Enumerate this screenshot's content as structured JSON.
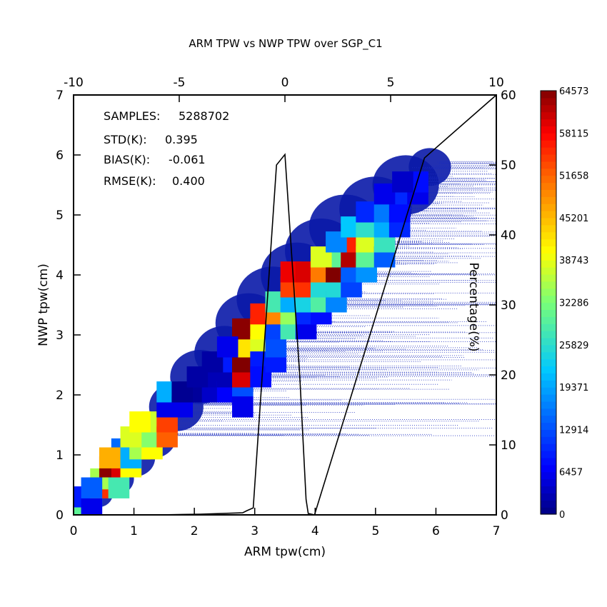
{
  "chart_data": {
    "type": "heatmap",
    "title": "ARM TPW vs NWP TPW over SGP_C1",
    "xlabel": "ARM tpw(cm)",
    "ylabel": "NWP tpw(cm)",
    "xlim": [
      0,
      7
    ],
    "ylim": [
      0,
      7
    ],
    "x_ticks": [
      "0",
      "1",
      "2",
      "3",
      "4",
      "5",
      "6",
      "7"
    ],
    "y_ticks": [
      "0",
      "1",
      "2",
      "3",
      "4",
      "5",
      "6",
      "7"
    ],
    "top_axis": {
      "lim": [
        -10,
        10
      ],
      "ticks": [
        "-10",
        "-5",
        "0",
        "5",
        "10"
      ]
    },
    "right_axis": {
      "label": "Percentage(%)",
      "lim": [
        0,
        60
      ],
      "ticks": [
        "0",
        "10",
        "20",
        "30",
        "40",
        "50",
        "60"
      ]
    },
    "stats": [
      {
        "label": "SAMPLES:",
        "value": "5288702"
      },
      {
        "label": "STD(K):",
        "value": "0.395"
      },
      {
        "label": "BIAS(K):",
        "value": "-0.061"
      },
      {
        "label": "RMSE(K):",
        "value": "0.400"
      }
    ],
    "colorbar": {
      "min": 0,
      "max": 64573,
      "ticks": [
        "0",
        "6457",
        "12914",
        "19371",
        "25829",
        "32286",
        "38743",
        "45201",
        "51658",
        "58115",
        "64573"
      ]
    },
    "bin_size": 0.35,
    "cells": [
      [
        0.1,
        0.1,
        30000
      ],
      [
        0.3,
        0.3,
        22000
      ],
      [
        0.1,
        0.3,
        9000
      ],
      [
        0.3,
        0.1,
        6000
      ],
      [
        0.45,
        0.45,
        55000
      ],
      [
        0.6,
        0.6,
        60000
      ],
      [
        0.45,
        0.6,
        35000
      ],
      [
        0.6,
        0.8,
        64000
      ],
      [
        0.3,
        0.45,
        14000
      ],
      [
        0.75,
        0.45,
        28000
      ],
      [
        0.8,
        0.8,
        60000
      ],
      [
        0.95,
        0.8,
        40000
      ],
      [
        0.8,
        1.1,
        15000
      ],
      [
        0.95,
        0.95,
        20000
      ],
      [
        0.6,
        0.95,
        46000
      ],
      [
        1.1,
        1.1,
        35000
      ],
      [
        1.1,
        1.3,
        41000
      ],
      [
        1.3,
        1.1,
        40000
      ],
      [
        1.3,
        1.3,
        33000
      ],
      [
        0.95,
        1.3,
        38000
      ],
      [
        1.3,
        1.55,
        37000
      ],
      [
        1.1,
        1.55,
        40000
      ],
      [
        1.55,
        1.3,
        52000
      ],
      [
        1.55,
        1.55,
        54000
      ],
      [
        1.55,
        1.8,
        6000
      ],
      [
        1.55,
        2.05,
        20000
      ],
      [
        1.8,
        1.8,
        6000
      ],
      [
        2.05,
        2.05,
        1500
      ],
      [
        2.3,
        2.05,
        4000
      ],
      [
        1.8,
        2.05,
        1000
      ],
      [
        2.3,
        2.3,
        3000
      ],
      [
        2.05,
        2.3,
        2000
      ],
      [
        2.55,
        2.05,
        7000
      ],
      [
        2.55,
        2.3,
        3000
      ],
      [
        2.8,
        2.05,
        13000
      ],
      [
        2.55,
        2.55,
        9000
      ],
      [
        2.8,
        2.3,
        60000
      ],
      [
        2.8,
        2.55,
        64500
      ],
      [
        2.3,
        2.55,
        2000
      ],
      [
        2.8,
        2.8,
        42000
      ],
      [
        2.8,
        3.1,
        64000
      ],
      [
        3.1,
        2.8,
        38000
      ],
      [
        3.1,
        3.1,
        40000
      ],
      [
        2.55,
        2.8,
        6000
      ],
      [
        3.1,
        2.55,
        9000
      ],
      [
        3.1,
        2.3,
        8000
      ],
      [
        2.8,
        1.8,
        6000
      ],
      [
        3.35,
        2.55,
        9000
      ],
      [
        3.35,
        2.8,
        13000
      ],
      [
        3.35,
        3.1,
        12000
      ],
      [
        3.1,
        3.35,
        56000
      ],
      [
        3.35,
        3.35,
        49000
      ],
      [
        3.35,
        3.55,
        28000
      ],
      [
        3.6,
        3.1,
        28000
      ],
      [
        3.6,
        3.35,
        34000
      ],
      [
        3.6,
        3.55,
        20000
      ],
      [
        3.6,
        3.8,
        54000
      ],
      [
        3.85,
        3.1,
        6000
      ],
      [
        3.85,
        3.35,
        10000
      ],
      [
        3.85,
        3.55,
        24000
      ],
      [
        3.85,
        3.8,
        55000
      ],
      [
        3.6,
        4.05,
        59000
      ],
      [
        3.85,
        4.05,
        60000
      ],
      [
        4.1,
        3.35,
        8000
      ],
      [
        4.1,
        3.55,
        29000
      ],
      [
        4.1,
        3.8,
        25000
      ],
      [
        4.1,
        4.05,
        50000
      ],
      [
        4.35,
        3.55,
        17000
      ],
      [
        4.35,
        3.8,
        25000
      ],
      [
        4.35,
        4.05,
        64573
      ],
      [
        4.35,
        4.3,
        30000
      ],
      [
        4.1,
        4.3,
        38000
      ],
      [
        4.6,
        3.8,
        12000
      ],
      [
        4.6,
        4.05,
        14000
      ],
      [
        4.6,
        4.3,
        62000
      ],
      [
        4.6,
        4.55,
        56000
      ],
      [
        4.35,
        4.55,
        17000
      ],
      [
        4.85,
        4.05,
        18000
      ],
      [
        4.85,
        4.3,
        30000
      ],
      [
        4.85,
        4.55,
        38000
      ],
      [
        4.6,
        4.8,
        22000
      ],
      [
        4.85,
        4.8,
        26000
      ],
      [
        5.15,
        4.3,
        14000
      ],
      [
        5.15,
        4.55,
        27000
      ],
      [
        5.15,
        4.8,
        20000
      ],
      [
        4.85,
        5.05,
        10000
      ],
      [
        5.15,
        5.05,
        16000
      ],
      [
        5.4,
        4.8,
        10000
      ],
      [
        5.4,
        5.05,
        8000
      ],
      [
        5.4,
        5.35,
        10000
      ],
      [
        5.15,
        5.35,
        6000
      ],
      [
        5.7,
        5.35,
        6000
      ],
      [
        5.7,
        5.55,
        8000
      ],
      [
        5.45,
        5.55,
        4000
      ]
    ],
    "histogram": {
      "label": "Percentage(%)",
      "x": [
        -10,
        -6,
        -4,
        -2,
        -1.8,
        -1.5,
        -0.4,
        0,
        0.7,
        1.0,
        1.1,
        1.4,
        6.6,
        10
      ],
      "y": [
        0,
        0,
        0.1,
        0.3,
        0.6,
        1.0,
        50,
        51.5,
        20,
        2.2,
        0.2,
        0,
        51,
        60
      ]
    }
  }
}
